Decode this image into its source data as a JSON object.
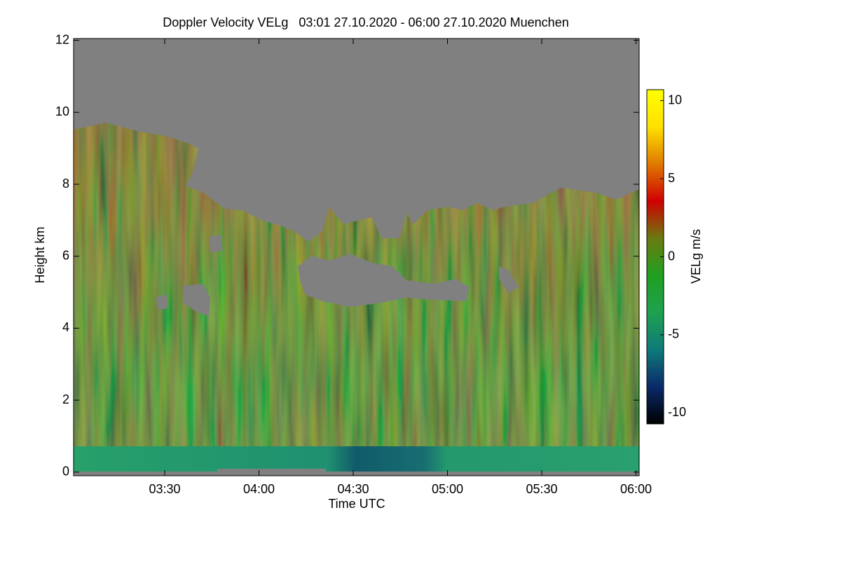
{
  "chart_data": {
    "type": "heatmap",
    "title": "Doppler Velocity VELg   03:01 27.10.2020 - 06:00 27.10.2020 Muenchen",
    "x_label": "Time UTC",
    "y_label": "Height km",
    "colorbar_label": "VELg m/s",
    "xlim": [
      181,
      361
    ],
    "xticks": [
      {
        "value": 210,
        "label": "03:30"
      },
      {
        "value": 240,
        "label": "04:00"
      },
      {
        "value": 270,
        "label": "04:30"
      },
      {
        "value": 300,
        "label": "05:00"
      },
      {
        "value": 330,
        "label": "05:30"
      },
      {
        "value": 360,
        "label": "06:00"
      }
    ],
    "ylim": [
      -0.1,
      12.05
    ],
    "yticks": [
      0,
      2,
      4,
      6,
      8,
      10,
      12
    ],
    "clim": [
      -10.7,
      10.7
    ],
    "cticks": [
      -10,
      -5,
      0,
      5,
      10
    ],
    "colormap": [
      "#000000",
      "#0a2a6a",
      "#0f7a7a",
      "#1fa050",
      "#20a020",
      "#6a7a10",
      "#d00000",
      "#e07a00",
      "#ffe000",
      "#ffff00"
    ],
    "missing_color": "#808080"
  }
}
